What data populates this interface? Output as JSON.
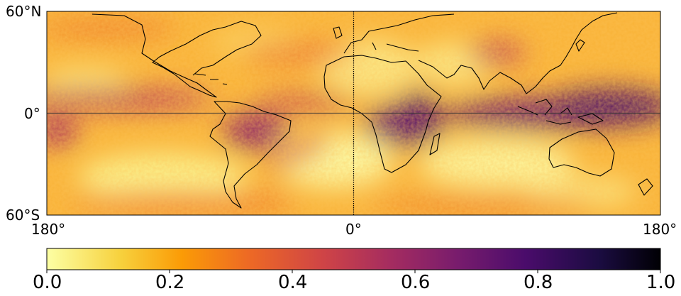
{
  "map": {
    "lat_labels": {
      "north": "60°N",
      "equator": "0°",
      "south": "60°S"
    },
    "lon_labels": {
      "west": "180°",
      "center": "0°",
      "east": "180°"
    },
    "extent": {
      "lon_min": -180,
      "lon_max": 180,
      "lat_min": -60,
      "lat_max": 60
    },
    "projection": "PlateCarree",
    "reference_lines": [
      "equator",
      "prime-meridian"
    ]
  },
  "colorbar": {
    "colormap": "inferno_r",
    "range": [
      0.0,
      1.0
    ],
    "ticks": [
      "0.0",
      "0.2",
      "0.4",
      "0.6",
      "0.8",
      "1.0"
    ],
    "colors": [
      "#fcffa4",
      "#f7d13d",
      "#fb9b06",
      "#ed6925",
      "#cf4446",
      "#a52c60",
      "#781c6d",
      "#4a0c6b",
      "#1b0c41",
      "#000004"
    ]
  }
}
